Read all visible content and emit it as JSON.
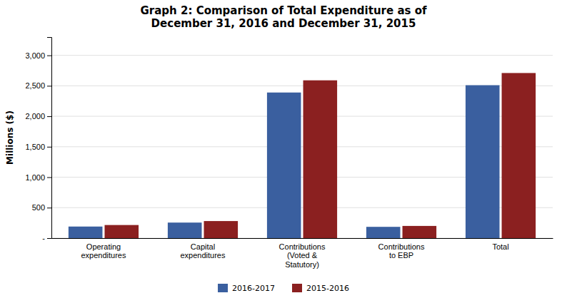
{
  "chart_data": {
    "type": "bar",
    "title": "Graph 2: Comparison of Total Expenditure as of\nDecember 31, 2016 and December 31, 2015",
    "categories": [
      "Operating\nexpenditures",
      "Capital\nexpenditures",
      "Contributions\n(Voted &\nStatutory)",
      "Contributions\nto EBP",
      "Total"
    ],
    "series": [
      {
        "name": "2016-2017",
        "color": "#3A5F9F",
        "values": [
          190,
          255,
          2390,
          185,
          2510
        ]
      },
      {
        "name": "2015-2016",
        "color": "#8B2020",
        "values": [
          215,
          280,
          2590,
          200,
          2710
        ]
      }
    ],
    "ylabel": "Millions ($)",
    "ylim": [
      0,
      3300
    ],
    "yticks": [
      {
        "value": 0,
        "label": "-"
      },
      500,
      {
        "value": 1000,
        "label": "1,000"
      },
      {
        "value": 1500,
        "label": "1,500"
      },
      {
        "value": 2000,
        "label": "2,000"
      },
      {
        "value": 2500,
        "label": "2,500"
      },
      {
        "value": 3000,
        "label": "3,000"
      }
    ],
    "grid": true,
    "legend": "bottom"
  }
}
